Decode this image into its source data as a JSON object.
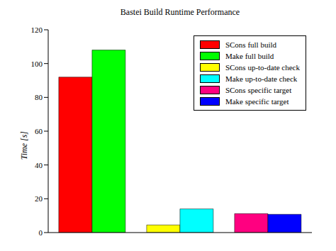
{
  "chart_data": {
    "type": "bar",
    "title": "Bastei Build Runtime Performance",
    "y_label": "Time [s]",
    "categories": [
      null,
      null,
      null
    ],
    "series": [
      {
        "name": "SCons full build",
        "color": "#ff0000",
        "values": [
          92,
          null,
          null
        ]
      },
      {
        "name": "Make full build",
        "color": "#00ff00",
        "values": [
          108,
          null,
          null
        ]
      },
      {
        "name": "SCons up-to-date check",
        "color": "#ffff00",
        "values": [
          null,
          4.5,
          null
        ]
      },
      {
        "name": "Make up-to-date check",
        "color": "#00ffff",
        "values": [
          null,
          14,
          null
        ]
      },
      {
        "name": "SCons specific target",
        "color": "#ff0080",
        "values": [
          null,
          null,
          11.2
        ]
      },
      {
        "name": "Make specific target",
        "color": "#0000ff",
        "values": [
          null,
          null,
          10.8
        ]
      }
    ],
    "ylim": [
      0,
      120
    ],
    "yticks": [
      0,
      20,
      40,
      60,
      80,
      100,
      120
    ],
    "legend": "upper right",
    "tick_labels": "y",
    "grid": false
  }
}
